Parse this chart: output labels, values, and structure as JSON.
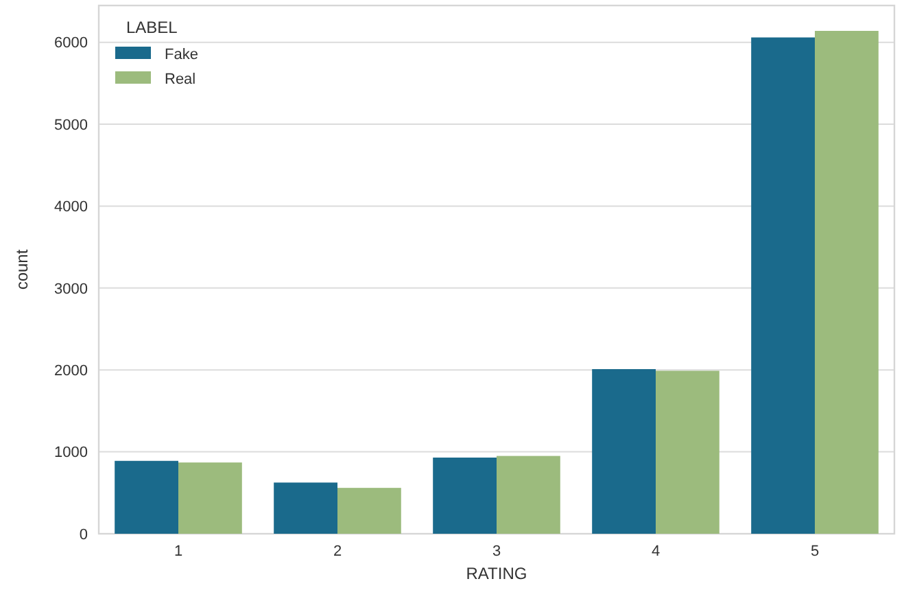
{
  "chart_data": {
    "type": "bar",
    "xlabel": "RATING",
    "ylabel": "count",
    "legend_title": "LABEL",
    "categories": [
      "1",
      "2",
      "3",
      "4",
      "5"
    ],
    "series": [
      {
        "name": "Fake",
        "color": "#1a6a8c",
        "values": [
          890,
          625,
          930,
          2010,
          6060
        ]
      },
      {
        "name": "Real",
        "color": "#9cbb7d",
        "values": [
          870,
          560,
          950,
          1990,
          6140
        ]
      }
    ],
    "ylim": [
      0,
      6450
    ],
    "yticks": [
      0,
      1000,
      2000,
      3000,
      4000,
      5000,
      6000
    ],
    "grid": "y",
    "legend": "top left"
  }
}
